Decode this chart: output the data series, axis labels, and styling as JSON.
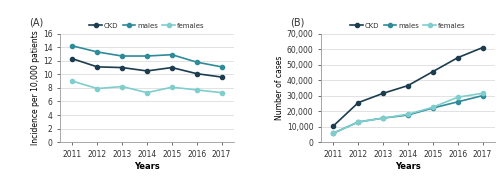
{
  "years": [
    2011,
    2012,
    2013,
    2014,
    2015,
    2016,
    2017
  ],
  "A": {
    "CKD": [
      12.3,
      11.1,
      11.0,
      10.5,
      11.0,
      10.1,
      9.6
    ],
    "males": [
      14.2,
      13.3,
      12.7,
      12.7,
      12.9,
      11.8,
      11.1
    ],
    "females": [
      9.0,
      7.9,
      8.2,
      7.3,
      8.1,
      7.7,
      7.3
    ],
    "ylabel": "Incidence per 10,000 patients",
    "xlabel": "Years",
    "ylim": [
      0,
      16
    ],
    "yticks": [
      0,
      2,
      4,
      6,
      8,
      10,
      12,
      14,
      16
    ],
    "label": "(A)"
  },
  "B": {
    "CKD": [
      10500,
      25500,
      31500,
      36500,
      45500,
      54500,
      61000
    ],
    "males": [
      5800,
      13000,
      15500,
      17500,
      22000,
      26000,
      30000
    ],
    "females": [
      5800,
      13000,
      15500,
      18000,
      22500,
      29000,
      31500
    ],
    "ylabel": "Number of cases",
    "xlabel": "Years",
    "ylim": [
      0,
      70000
    ],
    "yticks": [
      0,
      10000,
      20000,
      30000,
      40000,
      50000,
      60000,
      70000
    ],
    "label": "(B)"
  },
  "colors": {
    "CKD": "#1c3d4f",
    "males": "#2e8b9a",
    "females": "#7ecece"
  },
  "marker": "o",
  "markersize": 3,
  "linewidth": 1.2
}
